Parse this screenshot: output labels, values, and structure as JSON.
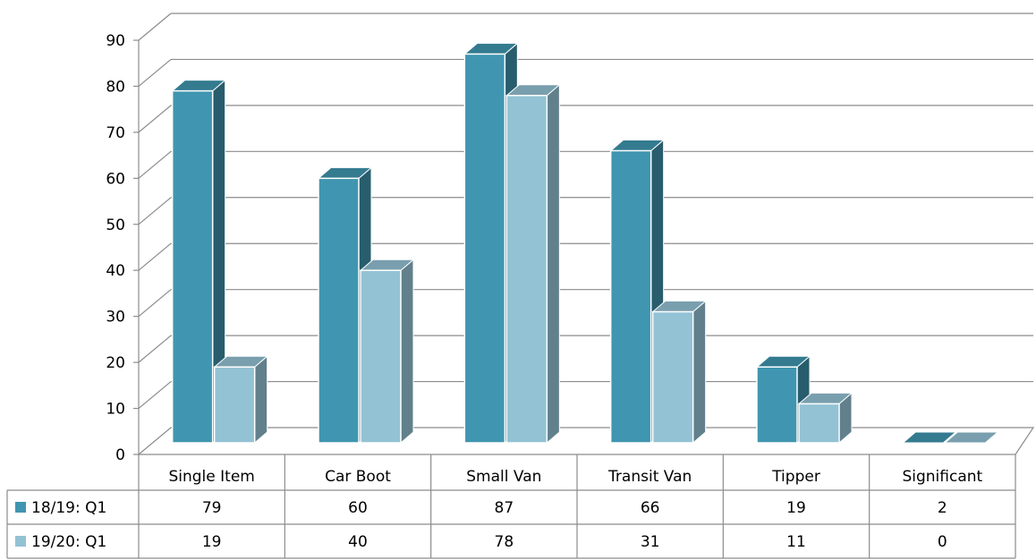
{
  "chart_data": {
    "type": "bar",
    "categories": [
      "Single Item",
      "Car Boot",
      "Small Van",
      "Transit Van",
      "Tipper",
      "Significant"
    ],
    "series": [
      {
        "name": "18/19: Q1",
        "values": [
          79,
          60,
          87,
          66,
          19,
          2
        ],
        "color": "#4096B0"
      },
      {
        "name": "19/20: Q1",
        "values": [
          19,
          40,
          78,
          31,
          11,
          0
        ],
        "color": "#93C2D4"
      }
    ],
    "title": "",
    "xlabel": "",
    "ylabel": "",
    "ylim": [
      0,
      90
    ],
    "yticks": [
      0,
      10,
      20,
      30,
      40,
      50,
      60,
      70,
      80,
      90
    ],
    "grid": true,
    "legend": "data-table-below",
    "style": "3d-clustered-column"
  }
}
